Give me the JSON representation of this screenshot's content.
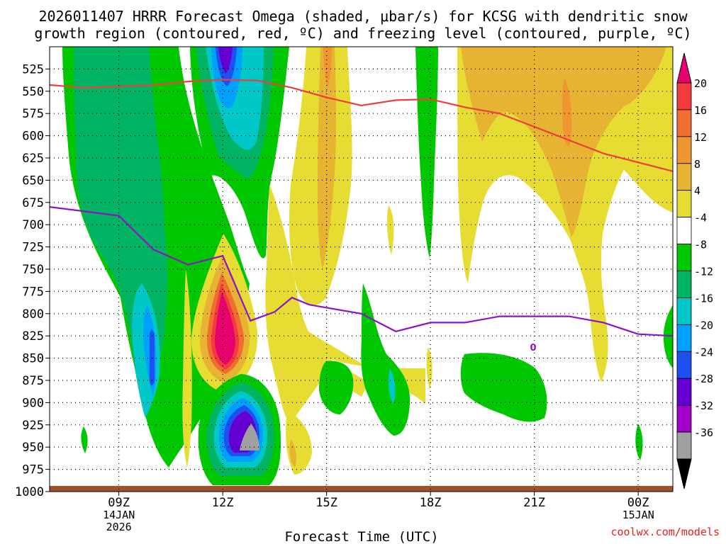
{
  "chart_data": {
    "type": "contour",
    "title_line1": "2026011407 HRRR Forecast Omega (shaded, μbar/s) for KCSG with dendritic snow",
    "title_line2": "growth region (contoured, red, ºC) and freezing level (contoured, purple, ºC)",
    "xlabel": "Forecast Time (UTC)",
    "credit": "coolwx.com/models",
    "y_levels": [
      "525",
      "550",
      "575",
      "600",
      "625",
      "650",
      "675",
      "700",
      "725",
      "750",
      "775",
      "800",
      "825",
      "850",
      "875",
      "900",
      "925",
      "950",
      "975",
      "1000"
    ],
    "x_ticks": [
      {
        "label": "09Z",
        "sub1": "14JAN",
        "sub2": "2026",
        "hour": 9
      },
      {
        "label": "12Z",
        "sub1": "",
        "sub2": "",
        "hour": 12
      },
      {
        "label": "15Z",
        "sub1": "",
        "sub2": "",
        "hour": 15
      },
      {
        "label": "18Z",
        "sub1": "",
        "sub2": "",
        "hour": 18
      },
      {
        "label": "21Z",
        "sub1": "",
        "sub2": "",
        "hour": 21
      },
      {
        "label": "00Z",
        "sub1": "15JAN",
        "sub2": "",
        "hour": 24
      }
    ],
    "x_range_hours": [
      7,
      25
    ],
    "y_range_hpa": [
      500,
      1000
    ],
    "colorbar": {
      "labels": [
        "20",
        "16",
        "12",
        "8",
        "4",
        "-4",
        "-8",
        "-12",
        "-16",
        "-20",
        "-24",
        "-28",
        "-32",
        "-36"
      ],
      "colors": [
        "#e8006e",
        "#f03c3c",
        "#f06e32",
        "#f09630",
        "#e6b432",
        "#e6dc32",
        "#ffffff",
        "#00c800",
        "#00b464",
        "#00c8c8",
        "#00a0ff",
        "#1e50f0",
        "#6400d2",
        "#a000c8",
        "#a0a0a0",
        "#000000"
      ]
    },
    "freezing_level_label": "0",
    "series": [
      {
        "name": "dendritic snow growth region (red)",
        "color": "#f03c3c",
        "values_hpa": [
          [
            7,
            543
          ],
          [
            8,
            546
          ],
          [
            10,
            543
          ],
          [
            11,
            539
          ],
          [
            12,
            537
          ],
          [
            13,
            538
          ],
          [
            14,
            546
          ],
          [
            15,
            557
          ],
          [
            16,
            566
          ],
          [
            17,
            560
          ],
          [
            18,
            559
          ],
          [
            19,
            568
          ],
          [
            20,
            575
          ],
          [
            21,
            590
          ],
          [
            22,
            605
          ],
          [
            23,
            620
          ],
          [
            24,
            630
          ],
          [
            25,
            640
          ]
        ]
      },
      {
        "name": "freezing level (purple)",
        "color": "#8c14c8",
        "values_hpa": [
          [
            7,
            680
          ],
          [
            9,
            690
          ],
          [
            10,
            728
          ],
          [
            11,
            745
          ],
          [
            12,
            735
          ],
          [
            12.8,
            808
          ],
          [
            13.5,
            798
          ],
          [
            14,
            782
          ],
          [
            14.5,
            790
          ],
          [
            16,
            800
          ],
          [
            17,
            820
          ],
          [
            18,
            810
          ],
          [
            19,
            810
          ],
          [
            20,
            803
          ],
          [
            21,
            803
          ],
          [
            22,
            803
          ],
          [
            23,
            810
          ],
          [
            24,
            823
          ],
          [
            25,
            825
          ]
        ]
      }
    ]
  }
}
